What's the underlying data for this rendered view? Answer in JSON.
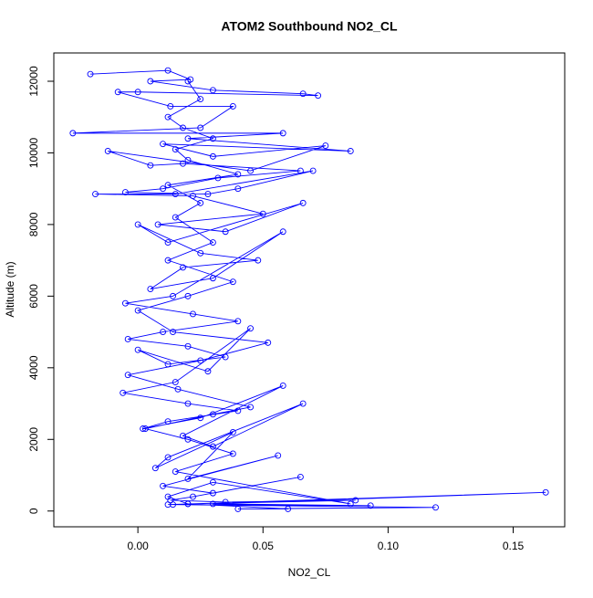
{
  "chart_data": {
    "type": "line",
    "title": "ATOM2 Southbound NO2_CL",
    "x_label": "NO2_CL",
    "y_label": "Altitude (m)",
    "color": "#0000ff",
    "markers": true,
    "xlim": [
      -0.0336,
      0.1706
    ],
    "ylim": [
      -440,
      12790
    ],
    "xticks": [
      {
        "value": 0,
        "label": "0.00"
      },
      {
        "value": 0.05,
        "label": "0.05"
      },
      {
        "value": 0.1,
        "label": "0.10"
      },
      {
        "value": 0.15,
        "label": "0.15"
      }
    ],
    "yticks": [
      0,
      2000,
      4000,
      6000,
      8000,
      10000,
      12000
    ],
    "x": [
      -0.019,
      0.012,
      0.021,
      0.005,
      0.03,
      0.066,
      0.072,
      0.0,
      -0.008,
      0.013,
      0.038,
      0.025,
      -0.026,
      0.058,
      0.02,
      0.085,
      0.01,
      0.03,
      0.075,
      0.045,
      -0.012,
      0.005,
      0.018,
      0.065,
      0.032,
      0.01,
      -0.005,
      0.028,
      0.04,
      0.07,
      0.015,
      -0.017,
      0.022,
      0.05,
      0.008,
      0.035,
      0.066,
      0.012,
      0.0,
      0.025,
      0.048,
      0.018,
      0.005,
      0.03,
      0.058,
      0.014,
      -0.005,
      0.022,
      0.04,
      0.01,
      -0.004,
      0.02,
      0.035,
      0.012,
      0.0,
      0.028,
      0.045,
      0.015,
      -0.006,
      0.02,
      0.04,
      0.012,
      0.002,
      0.025,
      0.058,
      0.018,
      0.03,
      0.066,
      0.012,
      0.007,
      0.038,
      0.02,
      0.056,
      0.01,
      0.03,
      0.065,
      0.022,
      0.013,
      0.035,
      0.087,
      0.02,
      0.012,
      0.163,
      0.03,
      0.093,
      0.014,
      0.119,
      0.04,
      0.06,
      0.02,
      0.012,
      0.03,
      0.085,
      0.015,
      0.038,
      0.02,
      0.003,
      0.03,
      0.045,
      0.016,
      -0.004,
      0.025,
      0.052,
      0.014,
      0.0,
      0.02,
      0.038,
      0.012,
      0.03,
      0.015,
      0.025,
      0.012,
      0.04,
      0.02,
      0.015,
      0.03,
      0.018,
      0.012,
      0.025,
      0.02
    ],
    "values": [
      12200,
      12300,
      12050,
      12000,
      11750,
      11650,
      11600,
      11700,
      11700,
      11300,
      11300,
      10700,
      10550,
      10550,
      10400,
      10050,
      10250,
      9900,
      10200,
      9500,
      10050,
      9650,
      9700,
      9500,
      9300,
      9000,
      8900,
      8850,
      9000,
      9500,
      8850,
      8850,
      8800,
      8300,
      8000,
      7800,
      8600,
      7500,
      8000,
      7200,
      7000,
      6800,
      6200,
      6500,
      7800,
      6000,
      5800,
      5500,
      5300,
      5000,
      4800,
      4600,
      4300,
      4100,
      4500,
      3900,
      5100,
      3600,
      3300,
      3000,
      2800,
      2500,
      2300,
      2600,
      3500,
      2100,
      1800,
      3000,
      1500,
      1200,
      2200,
      900,
      1550,
      700,
      500,
      950,
      400,
      300,
      250,
      300,
      200,
      180,
      520,
      200,
      150,
      180,
      100,
      60,
      60,
      200,
      400,
      800,
      200,
      1100,
      1600,
      2000,
      2300,
      2700,
      2900,
      3400,
      3800,
      4200,
      4700,
      5000,
      5600,
      6000,
      6400,
      7000,
      7500,
      8200,
      8600,
      9100,
      9400,
      9800,
      10100,
      10400,
      10700,
      11000,
      11500,
      12000
    ]
  }
}
